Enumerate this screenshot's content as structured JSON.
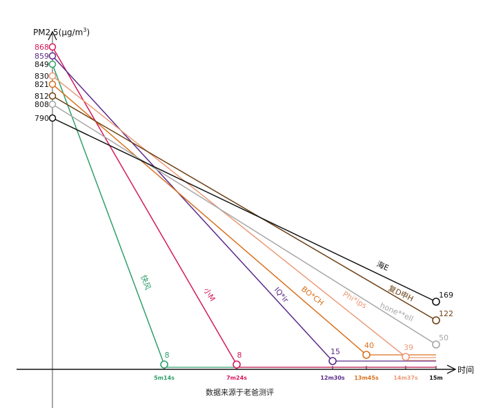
{
  "chart_data": {
    "type": "line",
    "title": "",
    "ylabel": "PM2.5(μg/m³)",
    "ylabel_parts": {
      "base": "PM2.5(μg/m",
      "sup": "3",
      "close": ")"
    },
    "xlabel": "时间",
    "source_note": "数据来源于老爸测评",
    "x_ticks": [
      "5m14s",
      "7m24s",
      "12m30s",
      "13m45s",
      "14m37s",
      "15m"
    ],
    "series": [
      {
        "name": "快风",
        "color": "#2e9e6a",
        "start": 849,
        "end": 8,
        "end_time": "5m14s"
      },
      {
        "name": "小M",
        "color": "#d4185c",
        "start": 868,
        "end": 8,
        "end_time": "7m24s"
      },
      {
        "name": "IQ*ir",
        "color": "#5a2a8a",
        "start": 859,
        "end": 15,
        "end_time": "12m30s"
      },
      {
        "name": "BO*CH",
        "color": "#d9701e",
        "start": 821,
        "end": 40,
        "end_time": "13m45s"
      },
      {
        "name": "Phi*ips",
        "color": "#eb9a78",
        "start": 830,
        "end": 39,
        "end_time": "14m37s"
      },
      {
        "name": "hone**ell",
        "color": "#a6a6a6",
        "start": 808,
        "end": 50,
        "end_time": "15m"
      },
      {
        "name": "复D申H",
        "color": "#6b3f14",
        "start": 812,
        "end": 122,
        "end_time": "15m"
      },
      {
        "name": "海E",
        "color": "#111111",
        "start": 790,
        "end": 169,
        "end_time": "15m"
      }
    ]
  }
}
